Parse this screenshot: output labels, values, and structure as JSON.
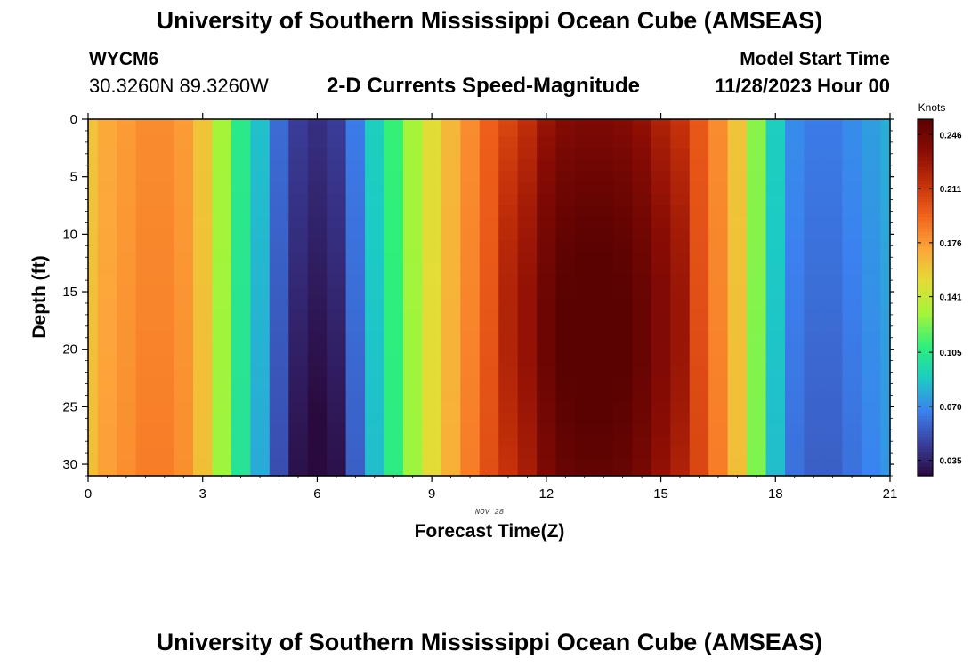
{
  "header": {
    "title": "University of Southern Mississippi Ocean Cube (AMSEAS)",
    "station_id": "WYCM6",
    "station_coords": "30.3260N  89.3260W",
    "plot_title": "2-D Currents Speed-Magnitude",
    "model_start_label": "Model Start Time",
    "model_start_value": "11/28/2023 Hour 00"
  },
  "footer": {
    "title": "University of Southern Mississippi Ocean Cube (AMSEAS)"
  },
  "chart_data": {
    "type": "heatmap",
    "title": "2-D Currents Speed-Magnitude",
    "xlabel": "Forecast Time(Z)",
    "ylabel": "Depth (ft)",
    "x_date_label": "NOV 28",
    "xlim": [
      0,
      21
    ],
    "ylim": [
      0,
      31
    ],
    "x_ticks": [
      0,
      3,
      6,
      9,
      12,
      15,
      18,
      21
    ],
    "y_ticks": [
      0,
      5,
      10,
      15,
      20,
      25,
      30
    ],
    "hours": [
      0,
      0.5,
      1,
      1.5,
      2,
      2.5,
      3,
      3.5,
      4,
      4.5,
      5,
      5.5,
      6,
      6.5,
      7,
      7.5,
      8,
      8.5,
      9,
      9.5,
      10,
      10.5,
      11,
      11.5,
      12,
      12.5,
      13,
      13.5,
      14,
      14.5,
      15,
      15.5,
      16,
      16.5,
      17,
      17.5,
      18,
      18.5,
      19,
      19.5,
      20,
      20.5,
      21
    ],
    "depths_ft": [
      0,
      1,
      2,
      3,
      4,
      5,
      6,
      7,
      8,
      9,
      10,
      11,
      12,
      13,
      14,
      15,
      16,
      17,
      18,
      19,
      20,
      21,
      22,
      23,
      24,
      25,
      26,
      27,
      28,
      29,
      30,
      31
    ],
    "surface_speed_knots": [
      0.16,
      0.17,
      0.175,
      0.18,
      0.18,
      0.175,
      0.16,
      0.13,
      0.105,
      0.085,
      0.06,
      0.045,
      0.04,
      0.045,
      0.065,
      0.09,
      0.11,
      0.13,
      0.15,
      0.165,
      0.18,
      0.195,
      0.205,
      0.215,
      0.23,
      0.238,
      0.24,
      0.24,
      0.238,
      0.232,
      0.222,
      0.213,
      0.198,
      0.18,
      0.16,
      0.125,
      0.09,
      0.07,
      0.065,
      0.065,
      0.07,
      0.075,
      0.08
    ],
    "colorbar": {
      "label": "Knots",
      "min": 0.025,
      "max": 0.256,
      "ticks": [
        0.035,
        0.07,
        0.105,
        0.141,
        0.176,
        0.211,
        0.246
      ],
      "tick_labels": [
        "0.035",
        "0.070",
        "0.105",
        "0.141",
        "0.176",
        "0.211",
        "0.246"
      ],
      "colors": [
        "#2a0a3e",
        "#3a3f9d",
        "#3b82f0",
        "#1ccbc4",
        "#2ff07a",
        "#a5f43a",
        "#e4dc36",
        "#fda53a",
        "#f3641c",
        "#c4300a",
        "#8a0c04",
        "#5a0202"
      ]
    }
  }
}
